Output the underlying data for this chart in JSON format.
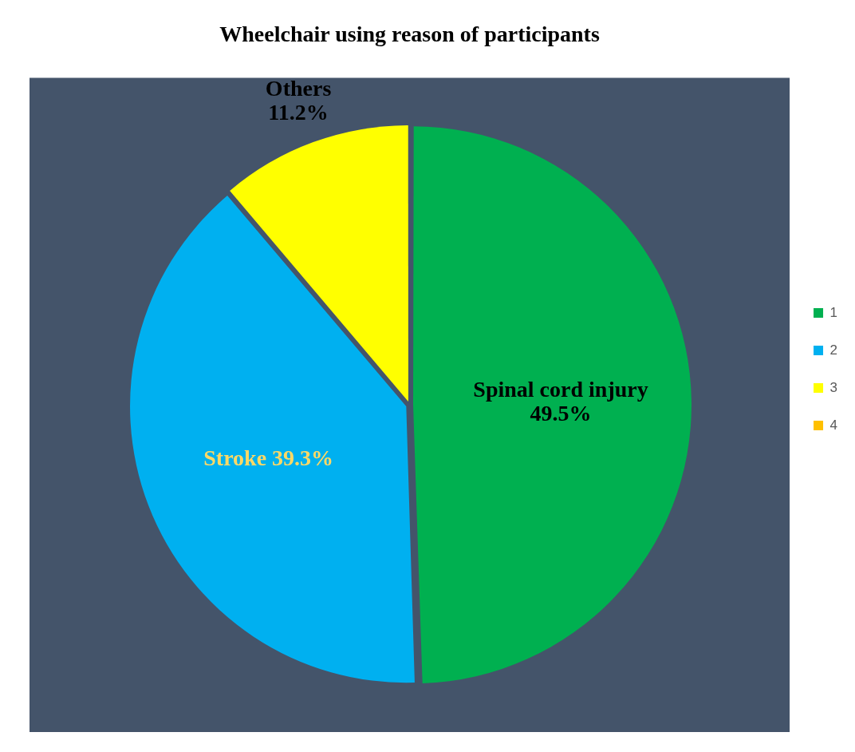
{
  "chart_data": {
    "type": "pie",
    "title": "Wheelchair using reason of participants",
    "categories": [
      "1",
      "2",
      "3",
      "4"
    ],
    "values": [
      49.5,
      39.3,
      11.2,
      0
    ],
    "colors": [
      "#00b050",
      "#00b0f0",
      "#ffff00",
      "#ffc000"
    ],
    "value_labels": [
      "Spinal cord injury 49.5%",
      "Stroke 39.3%",
      "Others 11.2%",
      null
    ],
    "legend": "right"
  }
}
